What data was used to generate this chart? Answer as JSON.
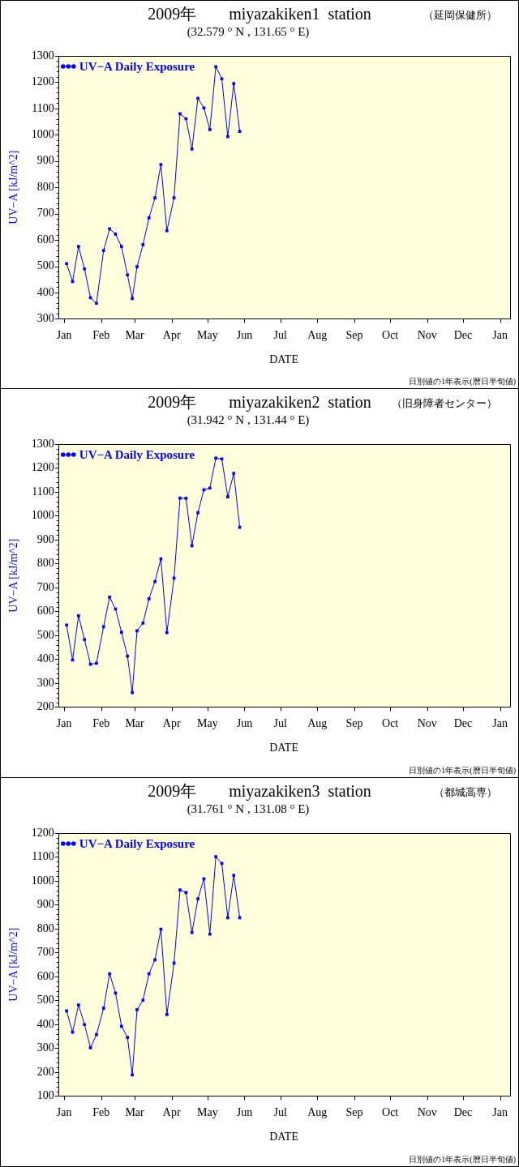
{
  "chart_data": [
    {
      "type": "line",
      "title": "2009年        miyazakiken1  station",
      "subtitle": "(32.579 ° N , 131.65 ° E)",
      "xlabel": "DATE",
      "ylabel": "UV−A [kJ/m^2]",
      "annotations": [
        "（延岡保健所）",
        "日別値の1年表示(暦日半旬値)"
      ],
      "x": [
        "2009-01-03",
        "2009-01-08",
        "2009-01-13",
        "2009-01-18",
        "2009-01-23",
        "2009-01-28",
        "2009-02-03",
        "2009-02-08",
        "2009-02-13",
        "2009-02-18",
        "2009-02-23",
        "2009-02-27",
        "2009-03-03",
        "2009-03-08",
        "2009-03-13",
        "2009-03-18",
        "2009-03-23",
        "2009-03-28",
        "2009-04-03",
        "2009-04-08",
        "2009-04-13",
        "2009-04-18",
        "2009-04-23",
        "2009-04-28",
        "2009-05-03",
        "2009-05-08",
        "2009-05-13",
        "2009-05-18",
        "2009-05-23",
        "2009-05-28"
      ],
      "xlim": [
        "2008-12-27",
        "2010-01-09"
      ],
      "xticks": [
        {
          "value": "2009-01-01",
          "label": "Jan"
        },
        {
          "value": "2009-02-01",
          "label": "Feb"
        },
        {
          "value": "2009-03-01",
          "label": "Mar"
        },
        {
          "value": "2009-04-01",
          "label": "Apr"
        },
        {
          "value": "2009-05-01",
          "label": "May"
        },
        {
          "value": "2009-06-01",
          "label": "Jun"
        },
        {
          "value": "2009-07-01",
          "label": "Jul"
        },
        {
          "value": "2009-08-01",
          "label": "Aug"
        },
        {
          "value": "2009-09-01",
          "label": "Sep"
        },
        {
          "value": "2009-10-01",
          "label": "Oct"
        },
        {
          "value": "2009-11-01",
          "label": "Nov"
        },
        {
          "value": "2009-12-01",
          "label": "Dec"
        },
        {
          "value": "2010-01-01",
          "label": "Jan"
        }
      ],
      "ylim": [
        300,
        1300
      ],
      "yticks": [
        300,
        {
          "value": 320,
          "label": null
        },
        {
          "value": 340,
          "label": null
        },
        {
          "value": 360,
          "label": null
        },
        {
          "value": 380,
          "label": null
        },
        400,
        {
          "value": 420,
          "label": null
        },
        {
          "value": 440,
          "label": null
        },
        {
          "value": 460,
          "label": null
        },
        {
          "value": 480,
          "label": null
        },
        500,
        {
          "value": 520,
          "label": null
        },
        {
          "value": 540,
          "label": null
        },
        {
          "value": 560,
          "label": null
        },
        {
          "value": 580,
          "label": null
        },
        600,
        {
          "value": 620,
          "label": null
        },
        {
          "value": 640,
          "label": null
        },
        {
          "value": 660,
          "label": null
        },
        {
          "value": 680,
          "label": null
        },
        700,
        {
          "value": 720,
          "label": null
        },
        {
          "value": 740,
          "label": null
        },
        {
          "value": 760,
          "label": null
        },
        {
          "value": 780,
          "label": null
        },
        800,
        {
          "value": 820,
          "label": null
        },
        {
          "value": 840,
          "label": null
        },
        {
          "value": 860,
          "label": null
        },
        {
          "value": 880,
          "label": null
        },
        900,
        {
          "value": 920,
          "label": null
        },
        {
          "value": 940,
          "label": null
        },
        {
          "value": 960,
          "label": null
        },
        {
          "value": 980,
          "label": null
        },
        1000,
        {
          "value": 1020,
          "label": null
        },
        {
          "value": 1040,
          "label": null
        },
        {
          "value": 1060,
          "label": null
        },
        {
          "value": 1080,
          "label": null
        },
        1100,
        {
          "value": 1120,
          "label": null
        },
        {
          "value": 1140,
          "label": null
        },
        {
          "value": 1160,
          "label": null
        },
        {
          "value": 1180,
          "label": null
        },
        1200,
        {
          "value": 1220,
          "label": null
        },
        {
          "value": 1240,
          "label": null
        },
        {
          "value": 1260,
          "label": null
        },
        {
          "value": 1280,
          "label": null
        },
        1300
      ],
      "series": [
        {
          "name": "UV−A Daily Exposure",
          "color": "#0000ff",
          "values": [
            510,
            442,
            575,
            490,
            380,
            359,
            560,
            642,
            622,
            575,
            467,
            377,
            498,
            582,
            684,
            760,
            887,
            635,
            760,
            1080,
            1061,
            946,
            1139,
            1102,
            1020,
            1259,
            1213,
            993,
            1195,
            1013
          ]
        }
      ],
      "legend": "top left",
      "marker": "square"
    },
    {
      "type": "line",
      "title": "2009年        miyazakiken2  station",
      "subtitle": "(31.942 ° N , 131.44 ° E)",
      "xlabel": "DATE",
      "ylabel": "UV−A [kJ/m^2]",
      "annotations": [
        "（旧身障者センター）",
        "日別値の1年表示(暦日半旬値)"
      ],
      "x": [
        "2009-01-03",
        "2009-01-08",
        "2009-01-13",
        "2009-01-18",
        "2009-01-23",
        "2009-01-28",
        "2009-02-03",
        "2009-02-08",
        "2009-02-13",
        "2009-02-18",
        "2009-02-23",
        "2009-02-27",
        "2009-03-03",
        "2009-03-08",
        "2009-03-13",
        "2009-03-18",
        "2009-03-23",
        "2009-03-28",
        "2009-04-03",
        "2009-04-08",
        "2009-04-13",
        "2009-04-18",
        "2009-04-23",
        "2009-04-28",
        "2009-05-03",
        "2009-05-08",
        "2009-05-13",
        "2009-05-18",
        "2009-05-23",
        "2009-05-28"
      ],
      "xlim": [
        "2008-12-27",
        "2010-01-09"
      ],
      "xticks": [
        {
          "value": "2009-01-01",
          "label": "Jan"
        },
        {
          "value": "2009-02-01",
          "label": "Feb"
        },
        {
          "value": "2009-03-01",
          "label": "Mar"
        },
        {
          "value": "2009-04-01",
          "label": "Apr"
        },
        {
          "value": "2009-05-01",
          "label": "May"
        },
        {
          "value": "2009-06-01",
          "label": "Jun"
        },
        {
          "value": "2009-07-01",
          "label": "Jul"
        },
        {
          "value": "2009-08-01",
          "label": "Aug"
        },
        {
          "value": "2009-09-01",
          "label": "Sep"
        },
        {
          "value": "2009-10-01",
          "label": "Oct"
        },
        {
          "value": "2009-11-01",
          "label": "Nov"
        },
        {
          "value": "2009-12-01",
          "label": "Dec"
        },
        {
          "value": "2010-01-01",
          "label": "Jan"
        }
      ],
      "ylim": [
        200,
        1300
      ],
      "yticks": [
        200,
        {
          "value": 220,
          "label": null
        },
        {
          "value": 240,
          "label": null
        },
        {
          "value": 260,
          "label": null
        },
        {
          "value": 280,
          "label": null
        },
        300,
        {
          "value": 320,
          "label": null
        },
        {
          "value": 340,
          "label": null
        },
        {
          "value": 360,
          "label": null
        },
        {
          "value": 380,
          "label": null
        },
        400,
        {
          "value": 420,
          "label": null
        },
        {
          "value": 440,
          "label": null
        },
        {
          "value": 460,
          "label": null
        },
        {
          "value": 480,
          "label": null
        },
        500,
        {
          "value": 520,
          "label": null
        },
        {
          "value": 540,
          "label": null
        },
        {
          "value": 560,
          "label": null
        },
        {
          "value": 580,
          "label": null
        },
        600,
        {
          "value": 620,
          "label": null
        },
        {
          "value": 640,
          "label": null
        },
        {
          "value": 660,
          "label": null
        },
        {
          "value": 680,
          "label": null
        },
        700,
        {
          "value": 720,
          "label": null
        },
        {
          "value": 740,
          "label": null
        },
        {
          "value": 760,
          "label": null
        },
        {
          "value": 780,
          "label": null
        },
        800,
        {
          "value": 820,
          "label": null
        },
        {
          "value": 840,
          "label": null
        },
        {
          "value": 860,
          "label": null
        },
        {
          "value": 880,
          "label": null
        },
        900,
        {
          "value": 920,
          "label": null
        },
        {
          "value": 940,
          "label": null
        },
        {
          "value": 960,
          "label": null
        },
        {
          "value": 980,
          "label": null
        },
        1000,
        {
          "value": 1020,
          "label": null
        },
        {
          "value": 1040,
          "label": null
        },
        {
          "value": 1060,
          "label": null
        },
        {
          "value": 1080,
          "label": null
        },
        1100,
        {
          "value": 1120,
          "label": null
        },
        {
          "value": 1140,
          "label": null
        },
        {
          "value": 1160,
          "label": null
        },
        {
          "value": 1180,
          "label": null
        },
        1200,
        {
          "value": 1220,
          "label": null
        },
        {
          "value": 1240,
          "label": null
        },
        {
          "value": 1260,
          "label": null
        },
        {
          "value": 1280,
          "label": null
        },
        1300
      ],
      "series": [
        {
          "name": "UV−A Daily Exposure",
          "color": "#0000ff",
          "values": [
            543,
            397,
            582,
            482,
            379,
            383,
            536,
            660,
            610,
            513,
            413,
            260,
            519,
            551,
            653,
            725,
            820,
            511,
            739,
            1074,
            1073,
            875,
            1013,
            1109,
            1116,
            1241,
            1238,
            1079,
            1178,
            952
          ]
        }
      ],
      "legend": "top left",
      "marker": "square"
    },
    {
      "type": "line",
      "title": "2009年        miyazakiken3  station",
      "subtitle": "(31.761 ° N , 131.08 ° E)",
      "xlabel": "DATE",
      "ylabel": "UV−A [kJ/m^2]",
      "annotations": [
        "（都城高専）",
        "日別値の1年表示(暦日半旬値)"
      ],
      "x": [
        "2009-01-03",
        "2009-01-08",
        "2009-01-13",
        "2009-01-18",
        "2009-01-23",
        "2009-01-28",
        "2009-02-03",
        "2009-02-08",
        "2009-02-13",
        "2009-02-18",
        "2009-02-23",
        "2009-02-27",
        "2009-03-03",
        "2009-03-08",
        "2009-03-13",
        "2009-03-18",
        "2009-03-23",
        "2009-03-28",
        "2009-04-03",
        "2009-04-08",
        "2009-04-13",
        "2009-04-18",
        "2009-04-23",
        "2009-04-28",
        "2009-05-03",
        "2009-05-08",
        "2009-05-13",
        "2009-05-18",
        "2009-05-23",
        "2009-05-28"
      ],
      "xlim": [
        "2008-12-27",
        "2010-01-09"
      ],
      "xticks": [
        {
          "value": "2009-01-01",
          "label": "Jan"
        },
        {
          "value": "2009-02-01",
          "label": "Feb"
        },
        {
          "value": "2009-03-01",
          "label": "Mar"
        },
        {
          "value": "2009-04-01",
          "label": "Apr"
        },
        {
          "value": "2009-05-01",
          "label": "May"
        },
        {
          "value": "2009-06-01",
          "label": "Jun"
        },
        {
          "value": "2009-07-01",
          "label": "Jul"
        },
        {
          "value": "2009-08-01",
          "label": "Aug"
        },
        {
          "value": "2009-09-01",
          "label": "Sep"
        },
        {
          "value": "2009-10-01",
          "label": "Oct"
        },
        {
          "value": "2009-11-01",
          "label": "Nov"
        },
        {
          "value": "2009-12-01",
          "label": "Dec"
        },
        {
          "value": "2010-01-01",
          "label": "Jan"
        }
      ],
      "ylim": [
        100,
        1200
      ],
      "yticks": [
        100,
        {
          "value": 120,
          "label": null
        },
        {
          "value": 140,
          "label": null
        },
        {
          "value": 160,
          "label": null
        },
        {
          "value": 180,
          "label": null
        },
        200,
        {
          "value": 220,
          "label": null
        },
        {
          "value": 240,
          "label": null
        },
        {
          "value": 260,
          "label": null
        },
        {
          "value": 280,
          "label": null
        },
        300,
        {
          "value": 320,
          "label": null
        },
        {
          "value": 340,
          "label": null
        },
        {
          "value": 360,
          "label": null
        },
        {
          "value": 380,
          "label": null
        },
        400,
        {
          "value": 420,
          "label": null
        },
        {
          "value": 440,
          "label": null
        },
        {
          "value": 460,
          "label": null
        },
        {
          "value": 480,
          "label": null
        },
        500,
        {
          "value": 520,
          "label": null
        },
        {
          "value": 540,
          "label": null
        },
        {
          "value": 560,
          "label": null
        },
        {
          "value": 580,
          "label": null
        },
        600,
        {
          "value": 620,
          "label": null
        },
        {
          "value": 640,
          "label": null
        },
        {
          "value": 660,
          "label": null
        },
        {
          "value": 680,
          "label": null
        },
        700,
        {
          "value": 720,
          "label": null
        },
        {
          "value": 740,
          "label": null
        },
        {
          "value": 760,
          "label": null
        },
        {
          "value": 780,
          "label": null
        },
        800,
        {
          "value": 820,
          "label": null
        },
        {
          "value": 840,
          "label": null
        },
        {
          "value": 860,
          "label": null
        },
        {
          "value": 880,
          "label": null
        },
        900,
        {
          "value": 920,
          "label": null
        },
        {
          "value": 940,
          "label": null
        },
        {
          "value": 960,
          "label": null
        },
        {
          "value": 980,
          "label": null
        },
        1000,
        {
          "value": 1020,
          "label": null
        },
        {
          "value": 1040,
          "label": null
        },
        {
          "value": 1060,
          "label": null
        },
        {
          "value": 1080,
          "label": null
        },
        1100,
        {
          "value": 1120,
          "label": null
        },
        {
          "value": 1140,
          "label": null
        },
        {
          "value": 1160,
          "label": null
        },
        {
          "value": 1180,
          "label": null
        },
        1200
      ],
      "series": [
        {
          "name": "UV−A Daily Exposure",
          "color": "#0000ff",
          "values": [
            456,
            367,
            481,
            399,
            302,
            357,
            467,
            611,
            531,
            392,
            345,
            188,
            461,
            501,
            611,
            670,
            798,
            441,
            656,
            962,
            951,
            784,
            925,
            1009,
            777,
            1101,
            1073,
            846,
            1023,
            846
          ]
        }
      ],
      "legend": "top left",
      "marker": "square"
    }
  ]
}
